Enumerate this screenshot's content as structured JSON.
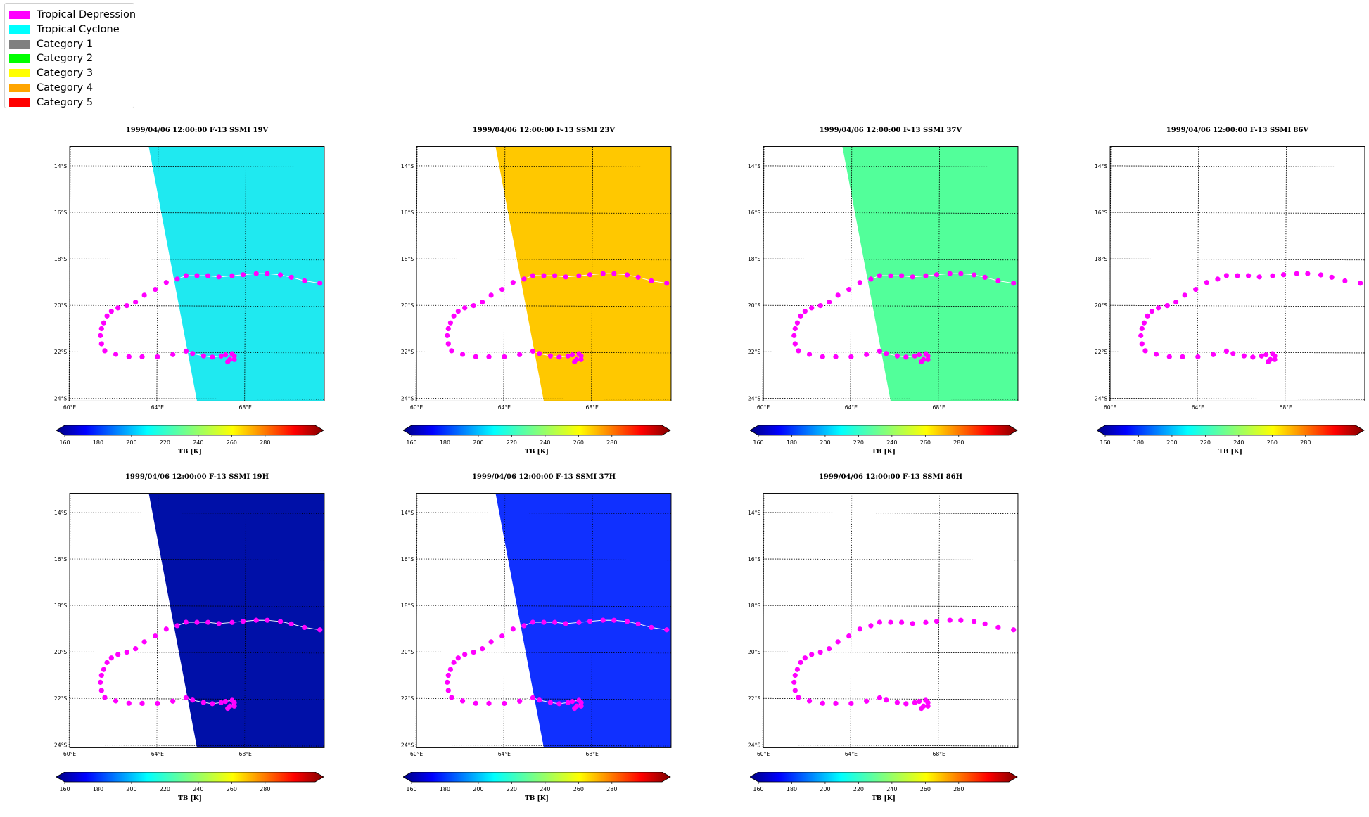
{
  "legend": {
    "items": [
      {
        "label": "Tropical Depression",
        "color": "#ff00ff"
      },
      {
        "label": "Tropical Cyclone",
        "color": "#00ffff"
      },
      {
        "label": "Category 1",
        "color": "#808080"
      },
      {
        "label": "Category 2",
        "color": "#00ff00"
      },
      {
        "label": "Category 3",
        "color": "#ffff00"
      },
      {
        "label": "Category 4",
        "color": "#ffa500"
      },
      {
        "label": "Category 5",
        "color": "#ff0000"
      }
    ]
  },
  "panels": [
    {
      "title": "1999/04/06 12:00:00  F-13 SSMI 19V",
      "field_color": "#1fe9f0",
      "has_swath": true
    },
    {
      "title": "1999/04/06 12:00:00  F-13 SSMI 23V",
      "field_color": "#ffc800",
      "has_swath": true
    },
    {
      "title": "1999/04/06 12:00:00  F-13 SSMI 37V",
      "field_color": "#52ff9a",
      "has_swath": true
    },
    {
      "title": "1999/04/06 12:00:00  F-13 SSMI 86V",
      "field_color": "#ffffff",
      "has_swath": false
    },
    {
      "title": "1999/04/06 12:00:00  F-13 SSMI 19H",
      "field_color": "#0010a8",
      "has_swath": true
    },
    {
      "title": "1999/04/06 12:00:00  F-13 SSMI 37H",
      "field_color": "#1030ff",
      "has_swath": true
    },
    {
      "title": "1999/04/06 12:00:00  F-13 SSMI 86H",
      "field_color": "#ffffff",
      "has_swath": false
    }
  ],
  "map": {
    "lat_labels": [
      "14°S",
      "16°S",
      "18°S",
      "20°S",
      "22°S",
      "24°S"
    ],
    "lon_labels": [
      "60°E",
      "64°E",
      "68°E"
    ]
  },
  "colorbar": {
    "ticks": [
      "160",
      "180",
      "200",
      "220",
      "240",
      "260",
      "280"
    ],
    "label": "TB [K]",
    "colormap": "jet"
  },
  "track": {
    "category": "Tropical Depression",
    "color": "#ff00ff",
    "points": [
      [
        71.4,
        -19.0
      ],
      [
        70.7,
        -18.9
      ],
      [
        70.1,
        -18.75
      ],
      [
        69.6,
        -18.65
      ],
      [
        69.0,
        -18.6
      ],
      [
        68.5,
        -18.6
      ],
      [
        67.9,
        -18.65
      ],
      [
        67.4,
        -18.7
      ],
      [
        66.8,
        -18.75
      ],
      [
        66.3,
        -18.7
      ],
      [
        65.8,
        -18.7
      ],
      [
        65.3,
        -18.7
      ],
      [
        64.9,
        -18.85
      ],
      [
        64.4,
        -19.0
      ],
      [
        63.9,
        -19.3
      ],
      [
        63.4,
        -19.55
      ],
      [
        63.0,
        -19.85
      ],
      [
        62.6,
        -20.0
      ],
      [
        62.2,
        -20.1
      ],
      [
        61.9,
        -20.25
      ],
      [
        61.7,
        -20.45
      ],
      [
        61.55,
        -20.75
      ],
      [
        61.45,
        -21.0
      ],
      [
        61.4,
        -21.3
      ],
      [
        61.45,
        -21.65
      ],
      [
        61.6,
        -21.95
      ],
      [
        62.1,
        -22.1
      ],
      [
        62.7,
        -22.2
      ],
      [
        63.3,
        -22.2
      ],
      [
        64.0,
        -22.2
      ],
      [
        64.7,
        -22.1
      ],
      [
        65.3,
        -21.95
      ],
      [
        65.6,
        -22.05
      ],
      [
        66.1,
        -22.15
      ],
      [
        66.5,
        -22.2
      ],
      [
        66.9,
        -22.15
      ],
      [
        67.1,
        -22.1
      ],
      [
        67.4,
        -22.05
      ],
      [
        67.5,
        -22.15
      ],
      [
        67.2,
        -22.4
      ],
      [
        67.3,
        -22.3
      ],
      [
        67.5,
        -22.3
      ]
    ]
  }
}
